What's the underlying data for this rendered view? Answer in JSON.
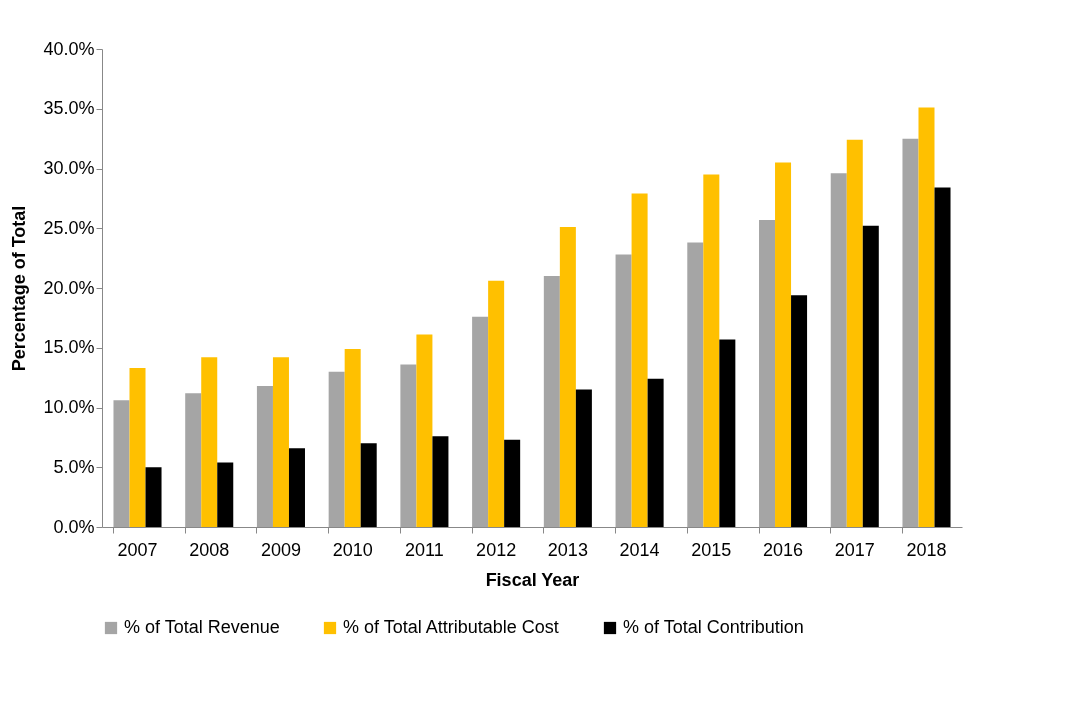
{
  "chart_data": {
    "type": "bar",
    "xlabel": "Fiscal Year",
    "ylabel": "Percentage of Total",
    "categories": [
      "2007",
      "2008",
      "2009",
      "2010",
      "2011",
      "2012",
      "2013",
      "2014",
      "2015",
      "2016",
      "2017",
      "2018"
    ],
    "series": [
      {
        "name": "% of Total Revenue",
        "color": "#a5a5a5",
        "values": [
          10.6,
          11.2,
          11.8,
          13.0,
          13.6,
          17.6,
          21.0,
          22.8,
          23.8,
          25.7,
          29.6,
          32.5
        ]
      },
      {
        "name": "% of Total Attributable Cost",
        "color": "#ffc000",
        "values": [
          13.3,
          14.2,
          14.2,
          14.9,
          16.1,
          20.6,
          25.1,
          27.9,
          29.5,
          30.5,
          32.4,
          35.1
        ]
      },
      {
        "name": "% of Total Contribution",
        "color": "#000000",
        "values": [
          5.0,
          5.4,
          6.6,
          7.0,
          7.6,
          7.3,
          11.5,
          12.4,
          15.7,
          19.4,
          25.2,
          28.4
        ]
      }
    ],
    "ylim": [
      0,
      40
    ],
    "yticks": [
      {
        "value": 0,
        "label": "0.0%"
      },
      {
        "value": 5,
        "label": "5.0%"
      },
      {
        "value": 10,
        "label": "10.0%"
      },
      {
        "value": 15,
        "label": "15.0%"
      },
      {
        "value": 20,
        "label": "20.0%"
      },
      {
        "value": 25,
        "label": "25.0%"
      },
      {
        "value": 30,
        "label": "30.0%"
      },
      {
        "value": 35,
        "label": "35.0%"
      },
      {
        "value": 40,
        "label": "40.0%"
      }
    ],
    "grid": false,
    "legend": "bottom"
  }
}
